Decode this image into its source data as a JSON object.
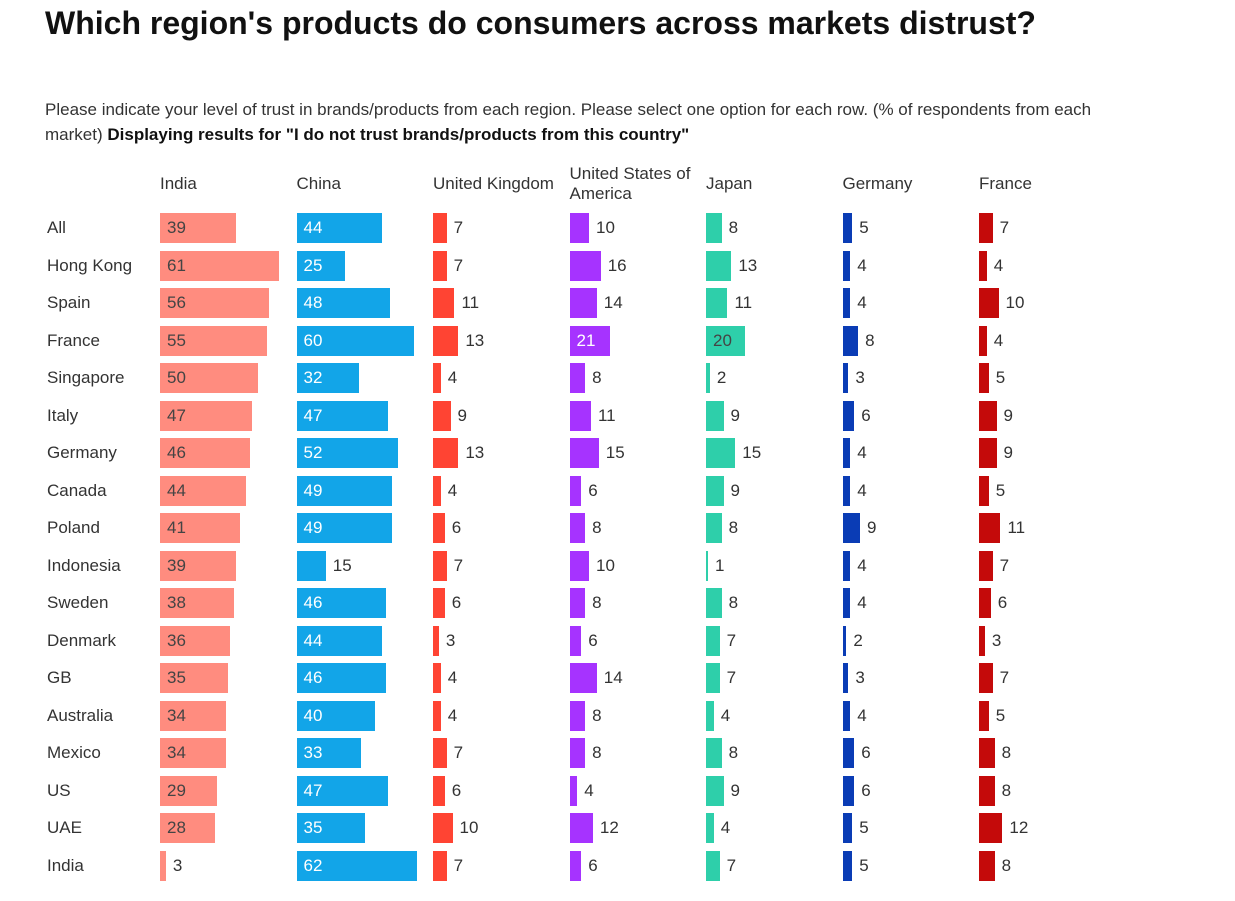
{
  "chart_data": {
    "type": "bar",
    "title": "Which region's products do consumers across markets distrust?",
    "subtitle": "Please indicate your level of trust in brands/products from each region. Please select one option for each row. (% of respondents from each market)",
    "subtitle_bold": "Displaying results for \"I do not trust brands/products from this country\"",
    "categories": [
      "All",
      "Hong Kong",
      "Spain",
      "France",
      "Singapore",
      "Italy",
      "Germany",
      "Canada",
      "Poland",
      "Indonesia",
      "Sweden",
      "Denmark",
      "GB",
      "Australia",
      "Mexico",
      "US",
      "UAE",
      "India"
    ],
    "series": [
      {
        "name": "India",
        "color": "#ff8c7f",
        "values": [
          39,
          61,
          56,
          55,
          50,
          47,
          46,
          44,
          41,
          39,
          38,
          36,
          35,
          34,
          34,
          29,
          28,
          3
        ]
      },
      {
        "name": "China",
        "color": "#12a5e8",
        "values": [
          44,
          25,
          48,
          60,
          32,
          47,
          52,
          49,
          49,
          15,
          46,
          44,
          46,
          40,
          33,
          47,
          35,
          62
        ]
      },
      {
        "name": "United Kingdom",
        "color": "#ff4433",
        "values": [
          7,
          7,
          11,
          13,
          4,
          9,
          13,
          4,
          6,
          7,
          6,
          3,
          4,
          4,
          7,
          6,
          10,
          7
        ]
      },
      {
        "name": "United States of America",
        "color": "#a633ff",
        "values": [
          10,
          16,
          14,
          21,
          8,
          11,
          15,
          6,
          8,
          10,
          8,
          6,
          14,
          8,
          8,
          4,
          12,
          6
        ]
      },
      {
        "name": "Japan",
        "color": "#2ecfaa",
        "values": [
          8,
          13,
          11,
          20,
          2,
          9,
          15,
          9,
          8,
          1,
          8,
          7,
          7,
          4,
          8,
          9,
          4,
          7
        ]
      },
      {
        "name": "Germany",
        "color": "#0a3cb5",
        "values": [
          5,
          4,
          4,
          8,
          3,
          6,
          4,
          4,
          9,
          4,
          4,
          2,
          3,
          4,
          6,
          6,
          5,
          5
        ]
      },
      {
        "name": "France",
        "color": "#c40a0a",
        "values": [
          7,
          4,
          10,
          4,
          5,
          9,
          9,
          5,
          11,
          7,
          6,
          3,
          7,
          5,
          8,
          8,
          12,
          8
        ]
      }
    ]
  }
}
